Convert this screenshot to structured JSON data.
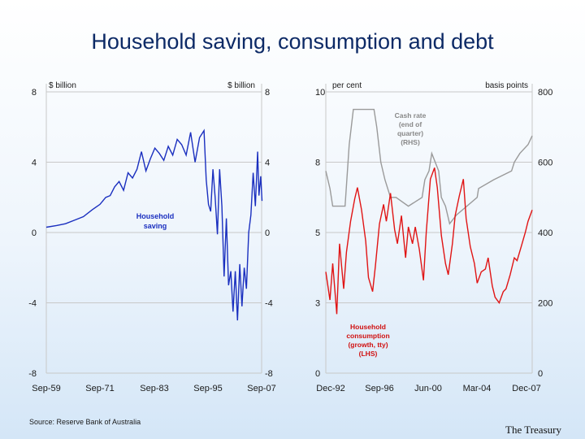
{
  "title": "Household saving, consumption and debt",
  "source": "Source: Reserve Bank of Australia",
  "organisation": "The Treasury",
  "colors": {
    "saving": "#1a2fbf",
    "cash_rate": "#9a9a9a",
    "consumption": "#e01414",
    "annotation": "#888888",
    "consumption_label": "#d01010"
  },
  "chart_data": [
    {
      "type": "line",
      "left_axis_unit": "$ billion",
      "right_axis_unit": "$ billion",
      "left_ticks": [
        "8",
        "4",
        "0",
        "-4",
        "-8"
      ],
      "right_ticks": [
        "8",
        "4",
        "0",
        "-4",
        "-8"
      ],
      "ylim": [
        -8,
        8
      ],
      "x_ticks": [
        "Sep-59",
        "Sep-71",
        "Sep-83",
        "Sep-95",
        "Sep-07"
      ],
      "grid": "horizontal",
      "annotations": [
        "Household",
        "saving"
      ],
      "series": [
        {
          "name": "Household saving",
          "x": [
            1959.7,
            1962,
            1964,
            1966,
            1968,
            1970,
            1971.7,
            1973,
            1974,
            1975,
            1976,
            1977,
            1978,
            1979,
            1980,
            1981,
            1982,
            1983,
            1984,
            1985,
            1986,
            1987,
            1988,
            1989,
            1990,
            1991,
            1992,
            1993,
            1994,
            1995,
            1995.5,
            1996,
            1996.5,
            1997,
            1997.5,
            1998,
            1998.5,
            1999,
            1999.5,
            2000,
            2000.5,
            2001,
            2001.5,
            2002,
            2002.5,
            2003,
            2003.5,
            2004,
            2004.5,
            2005,
            2005.5,
            2006,
            2006.5,
            2007,
            2007.3,
            2007.7,
            2008
          ],
          "y": [
            0.3,
            0.4,
            0.5,
            0.7,
            0.9,
            1.3,
            1.6,
            2.0,
            2.1,
            2.6,
            2.9,
            2.4,
            3.4,
            3.1,
            3.6,
            4.6,
            3.5,
            4.2,
            4.8,
            4.5,
            4.1,
            4.9,
            4.4,
            5.3,
            5.0,
            4.4,
            5.7,
            4.0,
            5.4,
            5.8,
            3.0,
            1.6,
            1.2,
            3.6,
            2.0,
            -0.1,
            3.6,
            1.5,
            -2.5,
            0.8,
            -3.0,
            -2.2,
            -4.5,
            -2.2,
            -5.0,
            -1.8,
            -4.2,
            -2.0,
            -3.2,
            0.0,
            1.0,
            3.4,
            1.5,
            4.6,
            2.1,
            3.2,
            1.8
          ]
        }
      ]
    },
    {
      "type": "line",
      "left_axis_unit": "per cent",
      "right_axis_unit": "basis points",
      "left_ticks": [
        "10",
        "8",
        "5",
        "3",
        "0"
      ],
      "right_ticks": [
        "800",
        "600",
        "400",
        "200",
        "0"
      ],
      "ylim_left": [
        0,
        10
      ],
      "ylim_right": [
        0,
        800
      ],
      "x_ticks": [
        "Dec-92",
        "Sep-96",
        "Jun-00",
        "Mar-04",
        "Dec-07"
      ],
      "grid": "horizontal",
      "annotations": [
        {
          "lines": [
            "Cash rate",
            "(end of",
            "quarter)",
            "(RHS)"
          ],
          "series": "cash_rate"
        },
        {
          "lines": [
            "Household",
            "consumption",
            "(growth, tty)",
            "(LHS)"
          ],
          "series": "consumption"
        }
      ],
      "series": [
        {
          "name": "cash_rate",
          "axis": "right",
          "x": [
            1992.9,
            1993.2,
            1993.4,
            1993.6,
            1994.3,
            1994.6,
            1994.9,
            1996.4,
            1996.6,
            1996.9,
            1997.2,
            1997.6,
            1998.0,
            1998.9,
            1999.9,
            2000.1,
            2000.4,
            2000.6,
            2001.1,
            2001.3,
            2001.6,
            2001.9,
            2002.4,
            2003.9,
            2004.0,
            2005.1,
            2006.4,
            2006.6,
            2007.0,
            2007.6,
            2007.9
          ],
          "y": [
            575,
            525,
            475,
            475,
            475,
            650,
            750,
            750,
            700,
            600,
            550,
            500,
            500,
            475,
            500,
            550,
            575,
            625,
            575,
            500,
            475,
            425,
            450,
            500,
            525,
            550,
            575,
            600,
            625,
            650,
            675
          ]
        },
        {
          "name": "consumption",
          "axis": "left",
          "x": [
            1992.9,
            1993.2,
            1993.4,
            1993.7,
            1993.9,
            1994.2,
            1994.4,
            1994.7,
            1995.0,
            1995.2,
            1995.5,
            1995.8,
            1996.0,
            1996.3,
            1996.5,
            1996.8,
            1997.1,
            1997.3,
            1997.6,
            1997.9,
            1998.1,
            1998.4,
            1998.7,
            1998.9,
            1999.2,
            1999.4,
            1999.7,
            2000.0,
            2000.2,
            2000.5,
            2000.8,
            2001.0,
            2001.3,
            2001.6,
            2001.8,
            2002.1,
            2002.3,
            2002.6,
            2002.9,
            2003.1,
            2003.4,
            2003.7,
            2003.9,
            2004.2,
            2004.5,
            2004.7,
            2005.0,
            2005.2,
            2005.5,
            2005.8,
            2006.0,
            2006.3,
            2006.6,
            2006.8,
            2007.1,
            2007.4,
            2007.6,
            2007.9
          ],
          "y": [
            3.6,
            2.6,
            3.9,
            2.1,
            4.6,
            3.0,
            4.3,
            5.4,
            6.2,
            6.6,
            5.8,
            4.7,
            3.4,
            2.9,
            3.8,
            5.3,
            6.0,
            5.4,
            6.4,
            5.1,
            4.6,
            5.6,
            4.1,
            5.2,
            4.6,
            5.2,
            4.4,
            3.3,
            5.0,
            6.9,
            7.3,
            6.6,
            4.9,
            3.9,
            3.5,
            4.6,
            5.6,
            6.3,
            6.9,
            5.5,
            4.5,
            3.9,
            3.2,
            3.6,
            3.7,
            4.1,
            3.1,
            2.7,
            2.5,
            2.9,
            3.0,
            3.5,
            4.1,
            4.0,
            4.5,
            5.0,
            5.4,
            5.8
          ]
        }
      ]
    }
  ]
}
